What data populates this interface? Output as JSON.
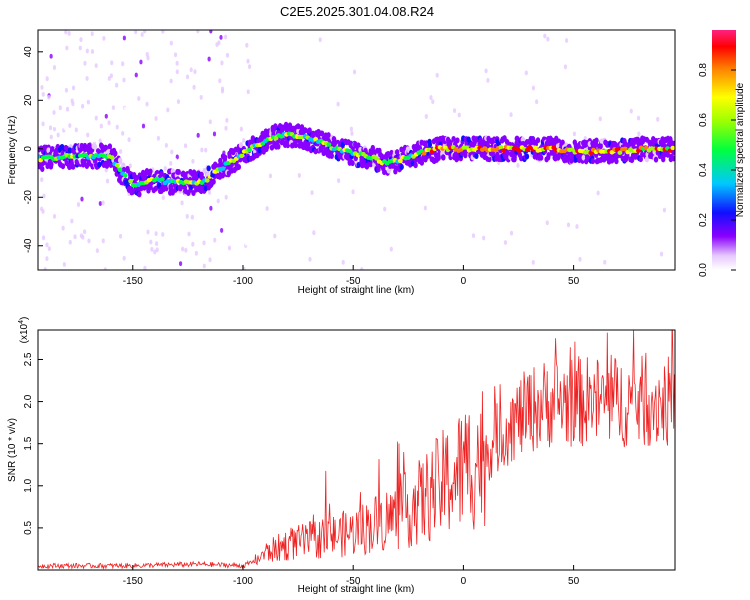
{
  "title": "C2E5.2025.301.04.08.R24",
  "colorbar": {
    "label": "Normalized spectral amplitude",
    "ticks": [
      0.0,
      0.2,
      0.4,
      0.6,
      0.8
    ],
    "tick_labels": [
      "0.0",
      "0.2",
      "0.4",
      "0.6",
      "0.8"
    ],
    "range": [
      0.0,
      0.96
    ]
  },
  "chart_data": [
    {
      "type": "heatmap",
      "xlabel": "Height of straight line (km)",
      "ylabel": "Frequency (Hz)",
      "xlim": [
        -193,
        96
      ],
      "ylim": [
        -50,
        49
      ],
      "xticks": [
        -150,
        -100,
        -50,
        0,
        50
      ],
      "xtick_labels": [
        "-150",
        "-100",
        "-50",
        "0",
        "50"
      ],
      "yticks": [
        -40,
        -20,
        0,
        20,
        40
      ],
      "ytick_labels": [
        "-40",
        "-20",
        "0",
        "20",
        "40"
      ],
      "ridge": {
        "x": [
          -193,
          -175,
          -160,
          -155,
          -150,
          -140,
          -130,
          -120,
          -115,
          -110,
          -105,
          -100,
          -95,
          -90,
          -85,
          -80,
          -75,
          -70,
          -65,
          -60,
          -55,
          -50,
          -45,
          -40,
          -35,
          -30,
          -25,
          -20,
          -15,
          -10,
          -5,
          0,
          10,
          20,
          30,
          40,
          50,
          60,
          70,
          80,
          90,
          96
        ],
        "y": [
          -4,
          -3,
          -3,
          -10,
          -15,
          -13,
          -14,
          -14,
          -12,
          -8,
          -5,
          -2,
          1,
          3,
          5,
          6,
          5,
          4,
          3,
          1,
          -1,
          -2,
          -3,
          -4,
          -6,
          -5,
          -3,
          -2,
          -1,
          0,
          0,
          0,
          0,
          0,
          0,
          0,
          -1,
          -1,
          -1,
          0,
          0,
          0
        ]
      },
      "grid": false
    },
    {
      "type": "line",
      "xlabel": "Height of straight line (km)",
      "ylabel": "SNR (10 * v/v)",
      "scale_label": "(x10",
      "scale_exponent": "4",
      "scale_close": ")",
      "xlim": [
        -193,
        96
      ],
      "ylim": [
        0,
        2.85
      ],
      "xticks": [
        -150,
        -100,
        -50,
        0,
        50
      ],
      "xtick_labels": [
        "-150",
        "-100",
        "-50",
        "0",
        "50"
      ],
      "yticks": [
        0.5,
        1.0,
        1.5,
        2.0,
        2.5
      ],
      "ytick_labels": [
        "0.5",
        "1.0",
        "1.5",
        "2.0",
        "2.5"
      ],
      "color": "#ee2222",
      "series_trend": {
        "x": [
          -193,
          -150,
          -120,
          -100,
          -95,
          -90,
          -80,
          -70,
          -60,
          -50,
          -40,
          -30,
          -20,
          -10,
          0,
          10,
          20,
          30,
          40,
          50,
          60,
          70,
          80,
          96
        ],
        "y": [
          0.05,
          0.05,
          0.07,
          0.05,
          0.1,
          0.2,
          0.3,
          0.35,
          0.4,
          0.45,
          0.55,
          0.65,
          0.8,
          1.0,
          1.2,
          1.4,
          1.7,
          1.9,
          2.0,
          2.0,
          2.0,
          2.0,
          2.0,
          2.0
        ]
      },
      "grid": false
    }
  ]
}
